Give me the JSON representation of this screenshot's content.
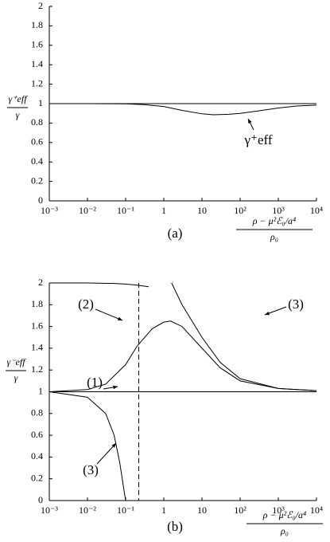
{
  "chart_data": [
    {
      "type": "line",
      "log_x": true,
      "ylabel": {
        "num": "γ⁺eff",
        "den": "γ"
      },
      "xlabel": {
        "num": "ρ − μ²ℰ₀/a⁴",
        "den": "ρ₀"
      },
      "panel_label": "(a)",
      "xlim": [
        0.001,
        10000
      ],
      "ylim": [
        0,
        2
      ],
      "xticks": [
        {
          "value": 0.001,
          "label": "10⁻³"
        },
        {
          "value": 0.01,
          "label": "10⁻²"
        },
        {
          "value": 0.1,
          "label": "10⁻¹"
        },
        1,
        10,
        {
          "value": 100,
          "label": "10²"
        },
        {
          "value": 1000,
          "label": "10³"
        },
        {
          "value": 10000,
          "label": "10⁴"
        }
      ],
      "yticks": [
        0,
        0.2,
        0.4,
        0.6,
        0.8,
        1,
        1.2,
        1.4,
        1.6,
        1.8,
        2
      ],
      "series": [
        {
          "color": "#000",
          "x": [
            0.001,
            10000
          ],
          "values": [
            1,
            1
          ]
        },
        {
          "name": "γ⁺eff",
          "color": "#000",
          "x": [
            0.001,
            0.01,
            0.1,
            0.3,
            1,
            3,
            10,
            20,
            50,
            100,
            300,
            1000,
            3000,
            10000
          ],
          "values": [
            1,
            1,
            0.998,
            0.99,
            0.97,
            0.93,
            0.895,
            0.885,
            0.89,
            0.9,
            0.925,
            0.955,
            0.975,
            0.985
          ]
        }
      ]
    },
    {
      "type": "line",
      "log_x": true,
      "ylabel": {
        "num": "γ⁻eff",
        "den": "γ"
      },
      "xlabel": {
        "num": "ρ − μ²ℰ₀/a⁴",
        "den": "ρ₀"
      },
      "panel_label": "(b)",
      "xlim": [
        0.001,
        10000
      ],
      "ylim": [
        0,
        2
      ],
      "xticks": [
        {
          "value": 0.001,
          "label": "10⁻³"
        },
        {
          "value": 0.01,
          "label": "10⁻²"
        },
        {
          "value": 0.1,
          "label": "10⁻¹"
        },
        1,
        10,
        {
          "value": 100,
          "label": "10²"
        },
        {
          "value": 1000,
          "label": "10³"
        },
        {
          "value": 10000,
          "label": "10⁴"
        }
      ],
      "yticks": [
        0,
        0.2,
        0.4,
        0.6,
        0.8,
        1,
        1.2,
        1.4,
        1.6,
        1.8,
        2
      ],
      "vline": 0.22,
      "vline_style": "dashed",
      "series": [
        {
          "color": "#000",
          "x": [
            0.001,
            10000
          ],
          "values": [
            1,
            1
          ]
        },
        {
          "name": "(2)",
          "color": "#000",
          "x": [
            0.001,
            0.01,
            0.05,
            0.1,
            0.2,
            0.4
          ],
          "values": [
            2,
            2,
            1.995,
            1.99,
            1.98,
            1.965
          ]
        },
        {
          "name": "(1)",
          "color": "#000",
          "x": [
            0.001,
            0.01,
            0.03,
            0.1,
            0.2,
            0.5,
            1,
            1.5,
            3,
            10,
            30,
            100,
            1000,
            10000
          ],
          "values": [
            1,
            1.02,
            1.07,
            1.25,
            1.42,
            1.58,
            1.64,
            1.65,
            1.6,
            1.4,
            1.22,
            1.1,
            1.03,
            1.01
          ]
        },
        {
          "name": "(3)",
          "color": "#000",
          "x": [
            1.6,
            3,
            10,
            30,
            100,
            1000,
            10000
          ],
          "values": [
            2,
            1.8,
            1.5,
            1.27,
            1.12,
            1.03,
            1.01
          ]
        },
        {
          "name": "(3)",
          "color": "#000",
          "x": [
            0.001,
            0.01,
            0.03,
            0.05,
            0.07,
            0.09,
            0.1
          ],
          "values": [
            1,
            0.95,
            0.8,
            0.6,
            0.35,
            0.1,
            0
          ]
        }
      ]
    }
  ]
}
